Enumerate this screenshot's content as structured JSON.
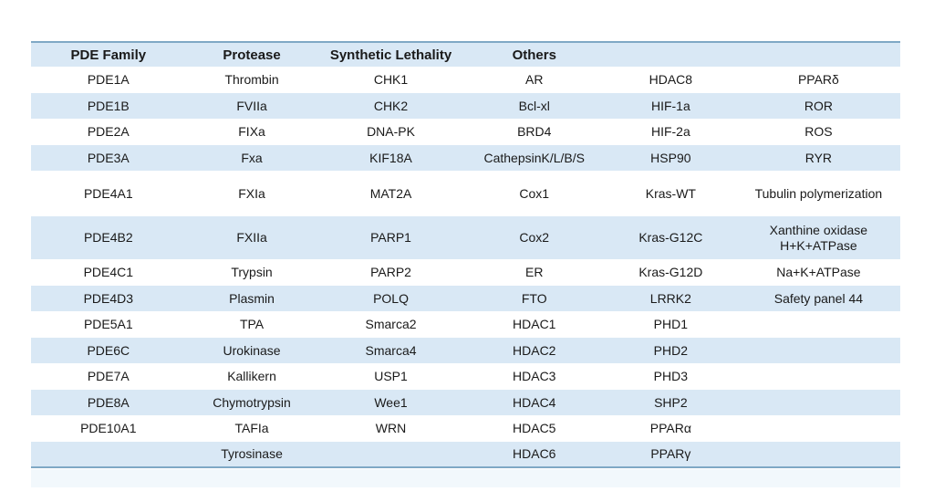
{
  "chart_data": {
    "type": "table",
    "title": "",
    "columns": [
      "PDE Family",
      "Protease",
      "Synthetic Lethality",
      "Others",
      "",
      ""
    ],
    "rows": [
      [
        "PDE1A",
        "Thrombin",
        "CHK1",
        "AR",
        "HDAC8",
        "PPARδ"
      ],
      [
        "PDE1B",
        "FVIIa",
        "CHK2",
        "Bcl-xl",
        "HIF-1a",
        "ROR"
      ],
      [
        "PDE2A",
        "FIXa",
        "DNA-PK",
        "BRD4",
        "HIF-2a",
        "ROS"
      ],
      [
        "PDE3A",
        "Fxa",
        "KIF18A",
        "CathepsinK/L/B/S",
        "HSP90",
        "RYR"
      ],
      [
        "PDE4A1",
        "FXIa",
        "MAT2A",
        "Cox1",
        "Kras-WT",
        "Tubulin polymerization"
      ],
      [
        "PDE4B2",
        "FXIIa",
        "PARP1",
        "Cox2",
        "Kras-G12C",
        "Xanthine oxidase\nH+K+ATPase"
      ],
      [
        "PDE4C1",
        "Trypsin",
        "PARP2",
        "ER",
        "Kras-G12D",
        "Na+K+ATPase"
      ],
      [
        "PDE4D3",
        "Plasmin",
        "POLQ",
        "FTO",
        "LRRK2",
        "Safety panel 44"
      ],
      [
        "PDE5A1",
        "TPA",
        "Smarca2",
        "HDAC1",
        "PHD1",
        ""
      ],
      [
        "PDE6C",
        "Urokinase",
        "Smarca4",
        "HDAC2",
        "PHD2",
        ""
      ],
      [
        "PDE7A",
        "Kallikern",
        "USP1",
        "HDAC3",
        "PHD3",
        ""
      ],
      [
        "PDE8A",
        "Chymotrypsin",
        "Wee1",
        "HDAC4",
        "SHP2",
        ""
      ],
      [
        "PDE10A1",
        "TAFIa",
        "WRN",
        "HDAC5",
        "PPARα",
        ""
      ],
      [
        "",
        "Tyrosinase",
        "",
        "HDAC6",
        "PPARγ",
        ""
      ]
    ],
    "layout": {
      "grid": "off",
      "legend": "none",
      "striped": true
    },
    "colors": {
      "stripe_fill": "#D9E8F5",
      "row_fill": "#FFFFFF",
      "header_fill": "#D9E8F5",
      "border_color": "#7FA8C5",
      "text_color": "#1A1A1A",
      "bottom_strip_fill": "#F2F8FC",
      "page_background": "#FFFFFF"
    }
  }
}
